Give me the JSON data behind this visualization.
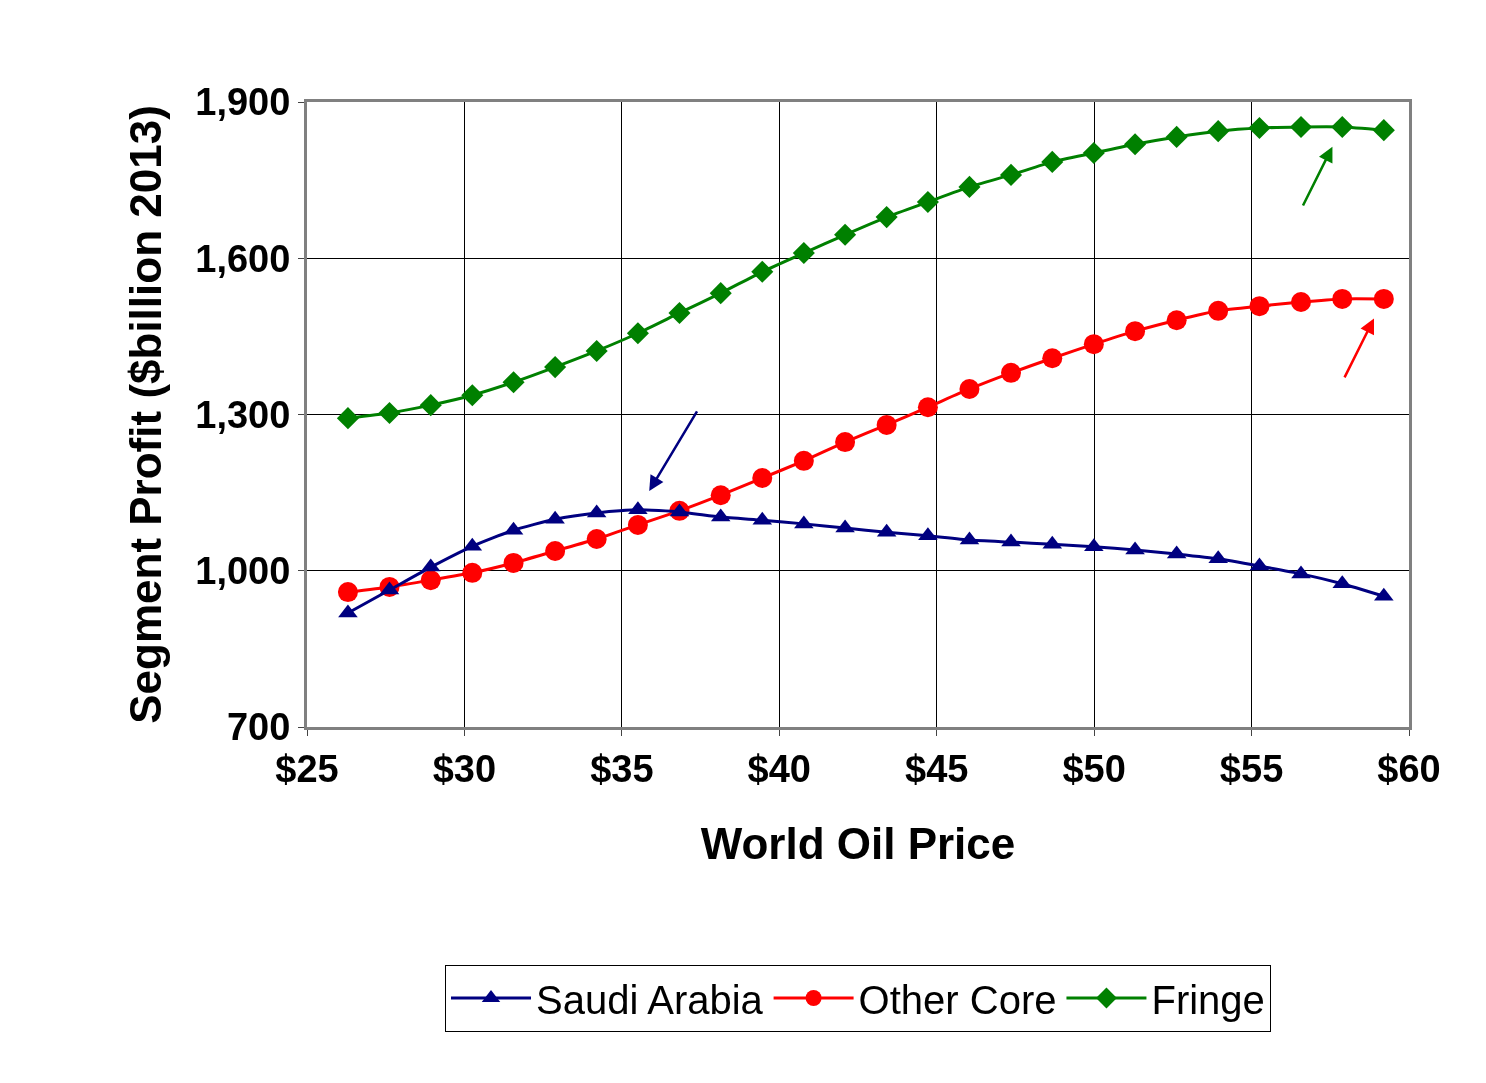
{
  "chart_data": {
    "type": "line",
    "xlabel": "World Oil Price",
    "ylabel": "Segment Profit ($billion 2013)",
    "x": [
      26.3,
      27.62,
      28.93,
      30.25,
      31.56,
      32.88,
      34.2,
      35.51,
      36.83,
      38.14,
      39.46,
      40.78,
      42.09,
      43.41,
      44.72,
      46.04,
      47.36,
      48.67,
      49.99,
      51.3,
      52.62,
      53.94,
      55.25,
      56.57,
      57.88,
      59.2
    ],
    "series": [
      {
        "name": "Saudi Arabia",
        "color": "#000080",
        "marker": "triangle",
        "values": [
          919,
          963,
          1007,
          1047,
          1078,
          1099,
          1111,
          1117,
          1113,
          1103,
          1097,
          1090,
          1082,
          1074,
          1067,
          1059,
          1055,
          1051,
          1046,
          1040,
          1032,
          1023,
          1009,
          994,
          975,
          951
        ]
      },
      {
        "name": "Other Core",
        "color": "#ff0000",
        "marker": "circle",
        "values": [
          959,
          969,
          982,
          996,
          1015,
          1038,
          1061,
          1088,
          1115,
          1145,
          1178,
          1211,
          1247,
          1280,
          1314,
          1349,
          1380,
          1408,
          1435,
          1460,
          1481,
          1499,
          1508,
          1516,
          1522,
          1522
        ]
      },
      {
        "name": "Fringe",
        "color": "#008000",
        "marker": "diamond",
        "values": [
          1293,
          1303,
          1318,
          1337,
          1362,
          1391,
          1422,
          1456,
          1495,
          1533,
          1574,
          1610,
          1645,
          1679,
          1708,
          1737,
          1760,
          1785,
          1802,
          1819,
          1833,
          1844,
          1850,
          1852,
          1852,
          1846
        ]
      }
    ],
    "xlim": [
      25,
      60
    ],
    "xticks": [
      {
        "value": 25,
        "label": "$25"
      },
      {
        "value": 30,
        "label": "$30"
      },
      {
        "value": 35,
        "label": "$35"
      },
      {
        "value": 40,
        "label": "$40"
      },
      {
        "value": 45,
        "label": "$45"
      },
      {
        "value": 50,
        "label": "$50"
      },
      {
        "value": 55,
        "label": "$55"
      },
      {
        "value": 60,
        "label": "$60"
      }
    ],
    "ylim": [
      700,
      1900
    ],
    "yticks": [
      {
        "value": 700,
        "label": "700"
      },
      {
        "value": 1000,
        "label": "1,000"
      },
      {
        "value": 1300,
        "label": "1,300"
      },
      {
        "value": 1600,
        "label": "1,600"
      },
      {
        "value": 1900,
        "label": "1,900"
      }
    ],
    "grid": true,
    "legend": "bottom",
    "line_style": "solid"
  }
}
